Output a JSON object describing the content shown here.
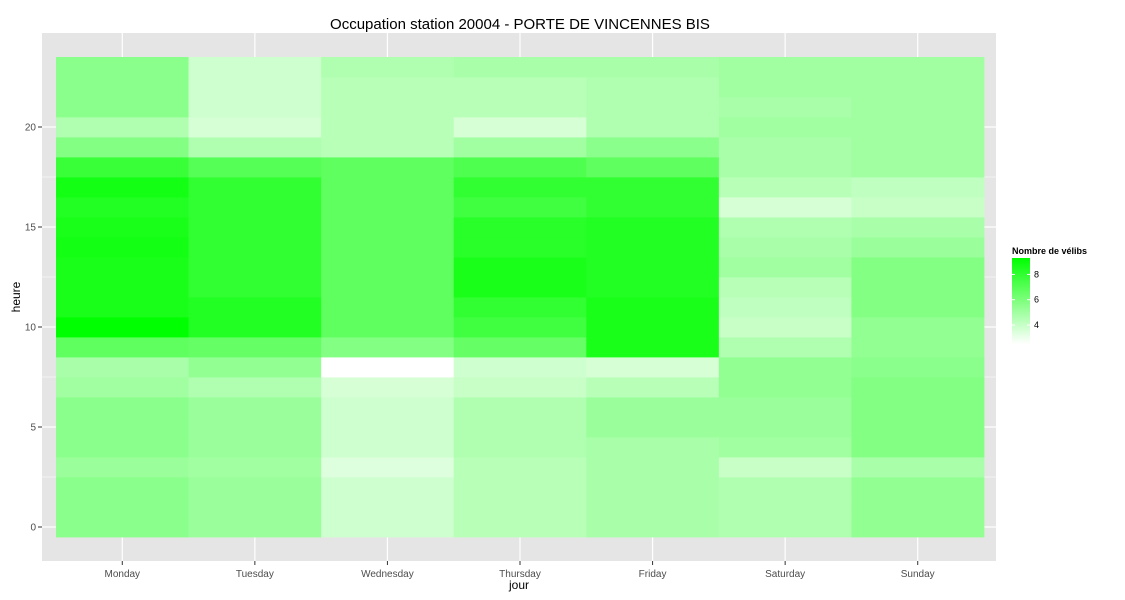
{
  "chart_data": {
    "type": "heatmap",
    "title": "Occupation station 20004 - PORTE DE VINCENNES BIS",
    "xlabel": "jour",
    "ylabel": "heure",
    "x_categories": [
      "Monday",
      "Tuesday",
      "Wednesday",
      "Thursday",
      "Friday",
      "Saturday",
      "Sunday"
    ],
    "y_hours": [
      0,
      1,
      2,
      3,
      4,
      5,
      6,
      7,
      8,
      9,
      10,
      11,
      12,
      13,
      14,
      15,
      16,
      17,
      18,
      19,
      20,
      21,
      22,
      23
    ],
    "ylim": [
      -0.5,
      23.5
    ],
    "y_ticks": [
      0,
      5,
      10,
      15,
      20
    ],
    "grid": true,
    "colors": {
      "low": "#ffffff",
      "high": "#00ff00",
      "panel": "#e5e5e5",
      "grid": "#ffffff"
    },
    "legend": {
      "title": "Nombre de vélibs",
      "position": "right",
      "min": 2.5,
      "max": 9.3,
      "ticks": [
        4,
        6,
        8
      ]
    },
    "values": [
      [
        5.6,
        5.2,
        3.8,
        4.4,
        4.8,
        4.6,
        5.4
      ],
      [
        5.6,
        5.2,
        3.8,
        4.4,
        4.8,
        4.6,
        5.4
      ],
      [
        5.6,
        5.2,
        3.8,
        4.4,
        4.8,
        4.6,
        5.4
      ],
      [
        5.2,
        5.0,
        3.4,
        4.4,
        4.8,
        4.0,
        4.8
      ],
      [
        5.6,
        5.2,
        3.8,
        4.6,
        4.8,
        5.0,
        5.8
      ],
      [
        5.6,
        5.2,
        3.8,
        4.6,
        5.2,
        5.2,
        5.8
      ],
      [
        5.6,
        5.2,
        3.8,
        4.6,
        5.2,
        5.2,
        5.8
      ],
      [
        5.0,
        4.6,
        3.6,
        4.0,
        4.4,
        5.4,
        5.8
      ],
      [
        4.8,
        5.4,
        2.5,
        3.8,
        3.6,
        5.4,
        5.6
      ],
      [
        6.8,
        6.6,
        5.8,
        6.6,
        8.6,
        4.6,
        5.4
      ],
      [
        9.3,
        8.4,
        6.8,
        7.6,
        8.6,
        4.0,
        5.4
      ],
      [
        8.6,
        8.4,
        6.8,
        8.0,
        8.6,
        4.2,
        5.8
      ],
      [
        8.6,
        8.0,
        6.8,
        8.6,
        8.4,
        4.4,
        5.8
      ],
      [
        8.6,
        8.0,
        6.8,
        8.6,
        8.4,
        5.0,
        5.8
      ],
      [
        8.8,
        8.0,
        6.8,
        8.2,
        8.4,
        4.8,
        5.2
      ],
      [
        8.6,
        8.0,
        6.8,
        8.2,
        8.4,
        4.6,
        4.8
      ],
      [
        8.4,
        8.0,
        6.8,
        7.6,
        8.0,
        3.6,
        4.0
      ],
      [
        8.8,
        8.0,
        6.8,
        8.0,
        8.0,
        4.4,
        4.2
      ],
      [
        7.8,
        7.0,
        6.8,
        7.2,
        6.8,
        4.8,
        5.0
      ],
      [
        5.8,
        4.6,
        4.4,
        5.0,
        5.6,
        4.8,
        5.0
      ],
      [
        4.6,
        3.6,
        4.4,
        3.6,
        4.6,
        5.0,
        5.0
      ],
      [
        5.6,
        3.8,
        4.4,
        4.4,
        4.6,
        4.8,
        5.0
      ],
      [
        5.6,
        3.8,
        4.4,
        4.4,
        4.6,
        5.0,
        5.0
      ],
      [
        5.6,
        3.8,
        4.6,
        4.8,
        4.8,
        5.0,
        5.0
      ]
    ]
  }
}
